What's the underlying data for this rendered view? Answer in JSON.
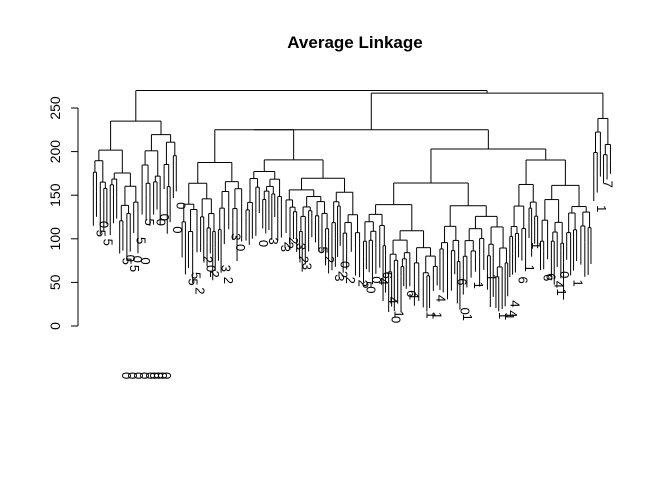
{
  "chart_data": {
    "type": "dendrogram",
    "title": "Average Linkage",
    "xlabel": "",
    "ylabel": "",
    "ylim": [
      0,
      270
    ],
    "y_ticks": [
      0,
      50,
      100,
      150,
      200,
      250
    ],
    "root_height": 270,
    "merges": [
      {
        "id": "root",
        "height": 270,
        "children": [
          "c5",
          "c2"
        ]
      },
      {
        "id": "c2",
        "height": 267,
        "children": [
          "c3",
          "c4"
        ]
      },
      {
        "id": "c4",
        "height": 238,
        "children": [
          "c6",
          "c7"
        ]
      },
      {
        "id": "c6",
        "height": 168,
        "children": [
          "c8",
          "c9"
        ]
      },
      {
        "id": "c7",
        "height": 183,
        "children": [
          "c10",
          "c11"
        ]
      },
      {
        "id": "c3",
        "height": 225,
        "children": [
          "c12",
          "c13"
        ]
      },
      {
        "id": "c12",
        "height": 180,
        "children": [
          "c14",
          "c15"
        ]
      },
      {
        "id": "c13",
        "height": 207,
        "children": [
          "c16",
          "c17"
        ]
      },
      {
        "id": "c16",
        "height": 178,
        "children": [
          "c18",
          "c19"
        ]
      },
      {
        "id": "c17",
        "height": 203,
        "children": [
          "c20",
          "c21"
        ]
      },
      {
        "id": "c20",
        "height": 175,
        "children": [
          "c22",
          "c23"
        ]
      },
      {
        "id": "c21",
        "height": 188,
        "children": [
          "c24",
          "c25"
        ]
      },
      {
        "id": "c5",
        "height": 235,
        "children": [
          "c26",
          "c27"
        ]
      },
      {
        "id": "c26",
        "height": 140,
        "children": [
          "c28",
          "c29"
        ]
      },
      {
        "id": "c27",
        "height": 188,
        "children": [
          "c30",
          "c31"
        ]
      }
    ],
    "leaf_labels": [
      "5",
      "5",
      "1",
      "3",
      "3",
      "2",
      "2",
      "2",
      "2",
      "2",
      "2",
      "2",
      "2",
      "3",
      "3",
      "3",
      "1",
      "4",
      "4",
      "4",
      "4",
      "4",
      "4",
      "6",
      "6",
      "1",
      "1",
      "1"
    ],
    "label_values": [
      "0",
      "0",
      "0",
      "0",
      "0",
      "0",
      "0",
      "0",
      "0",
      "0",
      "0",
      "0",
      "0"
    ]
  }
}
